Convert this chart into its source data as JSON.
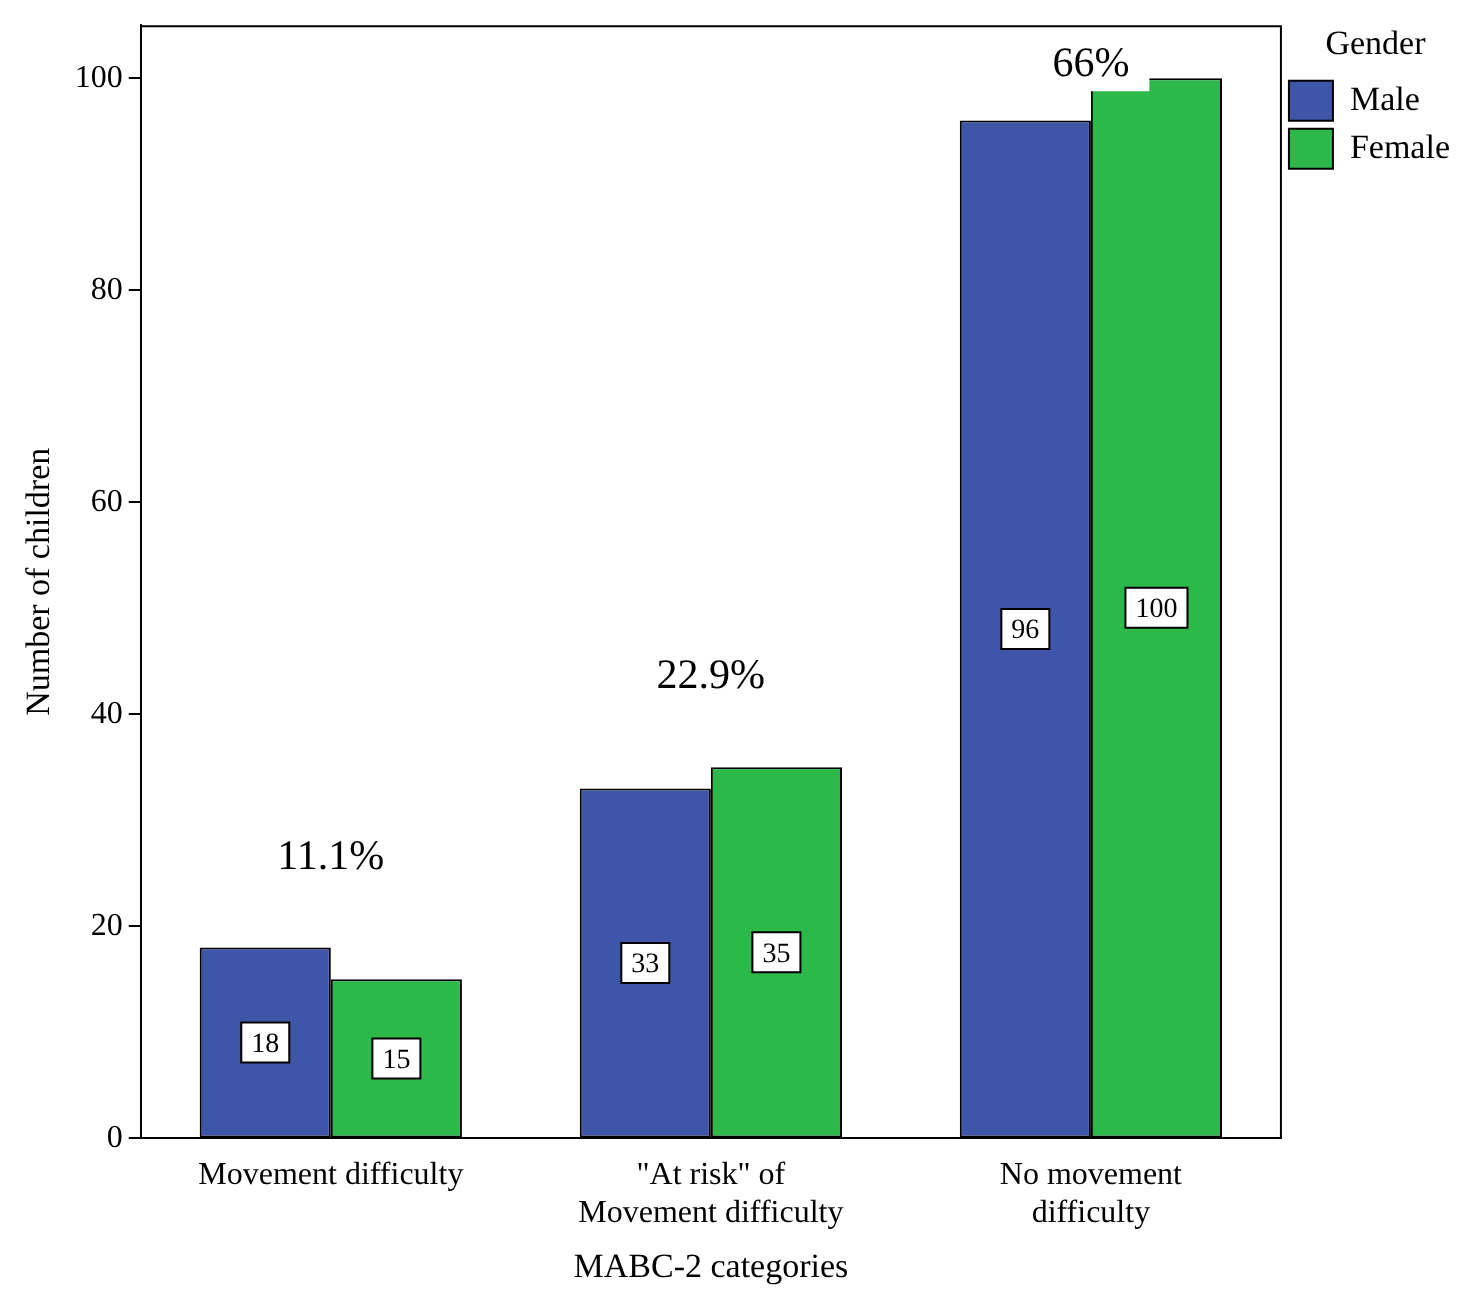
{
  "chart_data": {
    "type": "bar",
    "xlabel": "MABC-2 categories",
    "ylabel": "Number of children",
    "legend_title": "Gender",
    "categories": [
      "Movement difficulty",
      "\"At risk\" of Movement difficulty",
      "No movement difficulty"
    ],
    "series": [
      {
        "name": "Male",
        "color": "#3f56a8",
        "values": [
          18,
          33,
          96
        ]
      },
      {
        "name": "Female",
        "color": "#2db84a",
        "values": [
          15,
          35,
          100
        ]
      }
    ],
    "ylim": [
      0,
      105
    ],
    "yticks": [
      0,
      20,
      40,
      60,
      80,
      100
    ],
    "grid": false,
    "legend": "top right",
    "data_labels": true,
    "annotations": [
      "11.1%",
      "22.9%",
      "66%"
    ]
  }
}
